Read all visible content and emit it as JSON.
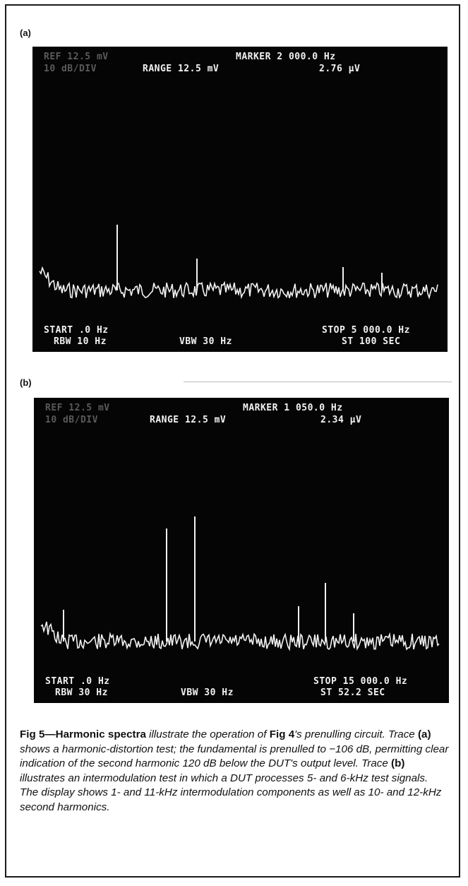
{
  "panels": [
    {
      "label": "(a)",
      "readouts": {
        "ref": "REF 12.5 mV",
        "scale": "10 dB/DIV",
        "range": "RANGE 12.5 mV",
        "marker_freq": "MARKER 2 000.0 Hz",
        "marker_level": "2.76 µV",
        "start": "START .0 Hz",
        "stop": "STOP 5 000.0 Hz",
        "rbw": "RBW 10 Hz",
        "vbw": "VBW 30 Hz",
        "sweep": "ST 100 SEC"
      }
    },
    {
      "label": "(b)",
      "readouts": {
        "ref": "REF 12.5 mV",
        "scale": "10 dB/DIV",
        "range": "RANGE 12.5 mV",
        "marker_freq": "MARKER 1 050.0 Hz",
        "marker_level": "2.34 µV",
        "start": "START .0 Hz",
        "stop": "STOP 15 000.0 Hz",
        "rbw": "RBW 30 Hz",
        "vbw": "VBW 30 Hz",
        "sweep": "ST 52.2 SEC"
      }
    }
  ],
  "caption": {
    "lead": "Fig 5—Harmonic spectra",
    "seg1": " illustrate the operation of ",
    "ref1": "Fig 4",
    "seg2": "'s prenulling circuit. Trace ",
    "ref2": "(a)",
    "seg3": " shows a harmonic-distortion test; the fundamental is prenulled to −106 dB, permitting clear indication of the second harmonic 120 dB below the DUT's output level. Trace ",
    "ref3": "(b)",
    "seg4": " illustrates an intermodulation test in which a DUT processes 5- and 6-kHz test signals. The display shows 1- and 11-kHz intermodulation components as well as 10- and 12-kHz second harmonics."
  },
  "colors": {
    "screen": "#050505",
    "trace": "#f2f2f2",
    "frame": "#1a1a1a"
  }
}
